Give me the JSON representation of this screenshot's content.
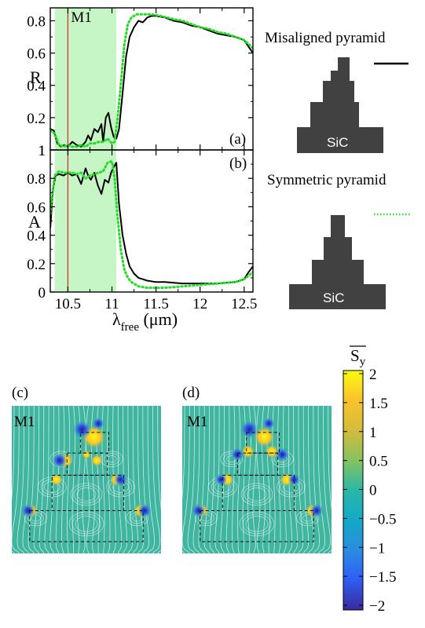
{
  "chart_data": [
    {
      "panel": "(a)",
      "type": "line",
      "ylabel": "R",
      "xlim": [
        10.3,
        12.6
      ],
      "ylim": [
        0.0,
        0.88
      ],
      "yticks": [
        0.2,
        0.4,
        0.6,
        0.8
      ],
      "yticklabels": [
        "0.2",
        "0.4",
        "0.6",
        "0.8"
      ],
      "bottom_label": "1",
      "highlight_band": [
        10.35,
        11.05
      ],
      "marker_line": {
        "x": 10.5,
        "label": "M1"
      },
      "panel_label": "(a)",
      "series": [
        {
          "name": "Misaligned pyramid",
          "style": "solid",
          "color": "#000000",
          "x": [
            10.3,
            10.34,
            10.38,
            10.42,
            10.46,
            10.5,
            10.55,
            10.6,
            10.65,
            10.7,
            10.73,
            10.76,
            10.8,
            10.84,
            10.88,
            10.9,
            10.93,
            10.96,
            10.99,
            11.02,
            11.05,
            11.08,
            11.12,
            11.16,
            11.2,
            11.25,
            11.3,
            11.35,
            11.4,
            11.45,
            11.5,
            11.6,
            11.7,
            11.8,
            11.9,
            12.0,
            12.1,
            12.2,
            12.3,
            12.4,
            12.5,
            12.55,
            12.6
          ],
          "y": [
            0.13,
            0.12,
            0.04,
            0.02,
            0.03,
            0.02,
            0.05,
            0.03,
            0.02,
            0.05,
            0.09,
            0.06,
            0.13,
            0.11,
            0.16,
            0.05,
            0.2,
            0.23,
            0.14,
            0.08,
            0.07,
            0.13,
            0.35,
            0.58,
            0.7,
            0.76,
            0.8,
            0.79,
            0.82,
            0.83,
            0.83,
            0.82,
            0.8,
            0.79,
            0.77,
            0.76,
            0.74,
            0.72,
            0.71,
            0.7,
            0.68,
            0.64,
            0.6
          ]
        },
        {
          "name": "Symmetric pyramid",
          "style": "dotted",
          "color": "#22dd22",
          "x": [
            10.3,
            10.35,
            10.4,
            10.45,
            10.5,
            10.55,
            10.6,
            10.65,
            10.7,
            10.75,
            10.8,
            10.85,
            10.9,
            10.95,
            11.0,
            11.03,
            11.06,
            11.1,
            11.14,
            11.18,
            11.22,
            11.28,
            11.35,
            11.45,
            11.55,
            11.7,
            11.8,
            11.9,
            12.0,
            12.1,
            12.2,
            12.3,
            12.4,
            12.5,
            12.6
          ],
          "y": [
            0.12,
            0.1,
            0.03,
            0.02,
            0.03,
            0.02,
            0.02,
            0.03,
            0.02,
            0.04,
            0.04,
            0.05,
            0.05,
            0.07,
            0.04,
            0.05,
            0.18,
            0.4,
            0.65,
            0.78,
            0.82,
            0.84,
            0.84,
            0.84,
            0.83,
            0.81,
            0.8,
            0.78,
            0.76,
            0.75,
            0.73,
            0.72,
            0.7,
            0.68,
            0.63
          ]
        }
      ]
    },
    {
      "panel": "(b)",
      "type": "line",
      "ylabel": "A",
      "xlabel": "λfree (μm)",
      "xlim": [
        10.3,
        12.6
      ],
      "ylim": [
        0.0,
        1.0
      ],
      "xticks": [
        10.5,
        11,
        11.5,
        12,
        12.5
      ],
      "xticklabels": [
        "10.5",
        "11",
        "11.5",
        "12",
        "12.5"
      ],
      "yticks": [
        0,
        0.2,
        0.4,
        0.6,
        0.8,
        1
      ],
      "yticklabels": [
        "0",
        "0.2",
        "0.4",
        "0.6",
        "0.8",
        "1"
      ],
      "highlight_band": [
        10.35,
        11.05
      ],
      "marker_line": {
        "x": 10.5
      },
      "panel_label": "(b)",
      "series": [
        {
          "name": "Misaligned pyramid",
          "style": "solid",
          "color": "#000000",
          "x": [
            10.3,
            10.33,
            10.36,
            10.4,
            10.45,
            10.5,
            10.55,
            10.6,
            10.65,
            10.7,
            10.73,
            10.76,
            10.8,
            10.84,
            10.88,
            10.92,
            10.96,
            10.99,
            11.02,
            11.05,
            11.08,
            11.12,
            11.16,
            11.2,
            11.25,
            11.3,
            11.35,
            11.4,
            11.5,
            11.6,
            11.8,
            12.0,
            12.2,
            12.4,
            12.5,
            12.55,
            12.6
          ],
          "y": [
            0.45,
            0.72,
            0.82,
            0.83,
            0.82,
            0.84,
            0.82,
            0.83,
            0.76,
            0.87,
            0.82,
            0.79,
            0.84,
            0.75,
            0.69,
            0.79,
            0.77,
            0.84,
            0.88,
            0.91,
            0.62,
            0.4,
            0.27,
            0.18,
            0.13,
            0.1,
            0.09,
            0.08,
            0.07,
            0.07,
            0.06,
            0.06,
            0.06,
            0.07,
            0.09,
            0.14,
            0.18
          ]
        },
        {
          "name": "Symmetric pyramid",
          "style": "dotted",
          "color": "#22dd22",
          "x": [
            10.3,
            10.35,
            10.4,
            10.45,
            10.5,
            10.55,
            10.6,
            10.65,
            10.7,
            10.75,
            10.8,
            10.85,
            10.9,
            10.95,
            11.0,
            11.03,
            11.06,
            11.1,
            11.14,
            11.18,
            11.22,
            11.3,
            11.4,
            11.5,
            11.6,
            11.8,
            12.0,
            12.2,
            12.4,
            12.5,
            12.6
          ],
          "y": [
            0.55,
            0.82,
            0.85,
            0.84,
            0.84,
            0.84,
            0.83,
            0.84,
            0.8,
            0.82,
            0.83,
            0.84,
            0.85,
            0.91,
            0.92,
            0.8,
            0.55,
            0.3,
            0.16,
            0.1,
            0.07,
            0.04,
            0.03,
            0.03,
            0.03,
            0.04,
            0.05,
            0.06,
            0.07,
            0.09,
            0.14
          ]
        }
      ]
    },
    {
      "type": "heatmap",
      "colorbar_label": "S̅y",
      "colorbar_ticks": [
        "2",
        "1.5",
        "1",
        "0.5",
        "0",
        "−0.5",
        "−1",
        "−1.5",
        "−2"
      ],
      "range": [
        -2,
        2
      ],
      "panels": [
        {
          "panel_label": "(c)",
          "mode_label": "M1"
        },
        {
          "panel_label": "(d)",
          "mode_label": "M1"
        }
      ]
    }
  ],
  "legend": {
    "misaligned": "Misaligned pyramid",
    "symmetric": "Symmetric pyramid",
    "substrate": "SiC"
  },
  "colors": {
    "band": "#c6f5c6",
    "marker_line": "#d9342b",
    "mode_label": "#cc2222",
    "field_bg": "#40b5a0"
  }
}
